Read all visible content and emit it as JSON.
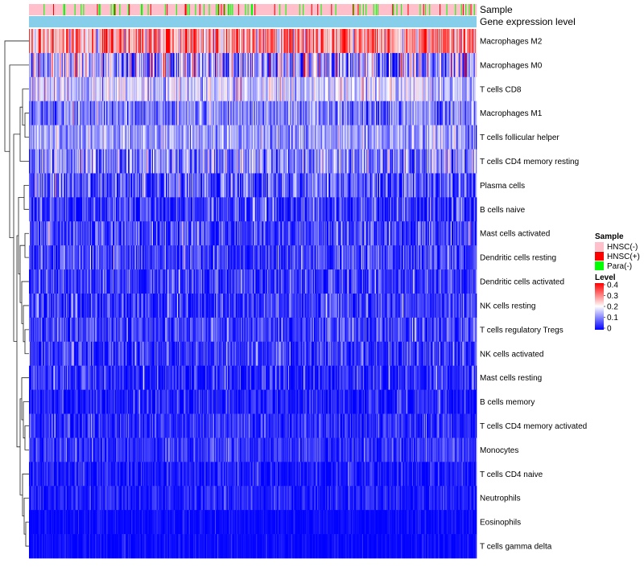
{
  "chart_data": {
    "type": "heatmap",
    "title": "",
    "n_samples": 520,
    "annotation_tracks": [
      {
        "name": "Sample",
        "label": "Sample"
      },
      {
        "name": "Gene expression level",
        "label": "Gene expression level"
      }
    ],
    "rows": [
      {
        "label": "Macrophages M2",
        "mean": 0.28,
        "spread": 0.12
      },
      {
        "label": "Macrophages M0",
        "mean": 0.13,
        "spread": 0.14
      },
      {
        "label": "T cells CD8",
        "mean": 0.16,
        "spread": 0.07
      },
      {
        "label": "Macrophages M1",
        "mean": 0.1,
        "spread": 0.07
      },
      {
        "label": "T cells follicular helper",
        "mean": 0.12,
        "spread": 0.06
      },
      {
        "label": "T cells CD4 memory resting",
        "mean": 0.1,
        "spread": 0.09
      },
      {
        "label": "Plasma cells",
        "mean": 0.06,
        "spread": 0.09
      },
      {
        "label": "B cells naive",
        "mean": 0.04,
        "spread": 0.07
      },
      {
        "label": "Mast cells activated",
        "mean": 0.05,
        "spread": 0.07
      },
      {
        "label": "Dendritic cells resting",
        "mean": 0.05,
        "spread": 0.07
      },
      {
        "label": "Dendritic cells activated",
        "mean": 0.04,
        "spread": 0.06
      },
      {
        "label": "NK cells resting",
        "mean": 0.04,
        "spread": 0.06
      },
      {
        "label": "T cells regulatory  Tregs",
        "mean": 0.05,
        "spread": 0.06
      },
      {
        "label": "NK cells activated",
        "mean": 0.04,
        "spread": 0.06
      },
      {
        "label": "Mast cells resting",
        "mean": 0.03,
        "spread": 0.06
      },
      {
        "label": "B cells memory",
        "mean": 0.02,
        "spread": 0.05
      },
      {
        "label": "T cells CD4 memory activated",
        "mean": 0.03,
        "spread": 0.05
      },
      {
        "label": "Monocytes",
        "mean": 0.04,
        "spread": 0.04
      },
      {
        "label": "T cells CD4 naive",
        "mean": 0.015,
        "spread": 0.04
      },
      {
        "label": "Neutrophils",
        "mean": 0.02,
        "spread": 0.035
      },
      {
        "label": "Eosinophils",
        "mean": 0.005,
        "spread": 0.02
      },
      {
        "label": "T cells gamma delta",
        "mean": 0.005,
        "spread": 0.02
      }
    ],
    "sample_groups": [
      {
        "label": "HNSC(-)",
        "color": "#FFC0CB",
        "fraction": 0.84
      },
      {
        "label": "HNSC(+)",
        "color": "#FF0000",
        "fraction": 0.05
      },
      {
        "label": "Para(-)",
        "color": "#00FF00",
        "fraction": 0.11
      }
    ],
    "expression_track_color": "#87CEEB",
    "color_scale": {
      "title": "Level",
      "min": 0,
      "max": 0.4,
      "ticks": [
        "0.4",
        "0.3",
        "0.2",
        "0.1",
        "0"
      ],
      "stops": [
        "#0000FF",
        "#FFFFFF",
        "#FF0000"
      ]
    },
    "legend": {
      "sample_title": "Sample",
      "level_title": "Level",
      "position": "right"
    },
    "dendrogram": "rows",
    "grid": false
  }
}
